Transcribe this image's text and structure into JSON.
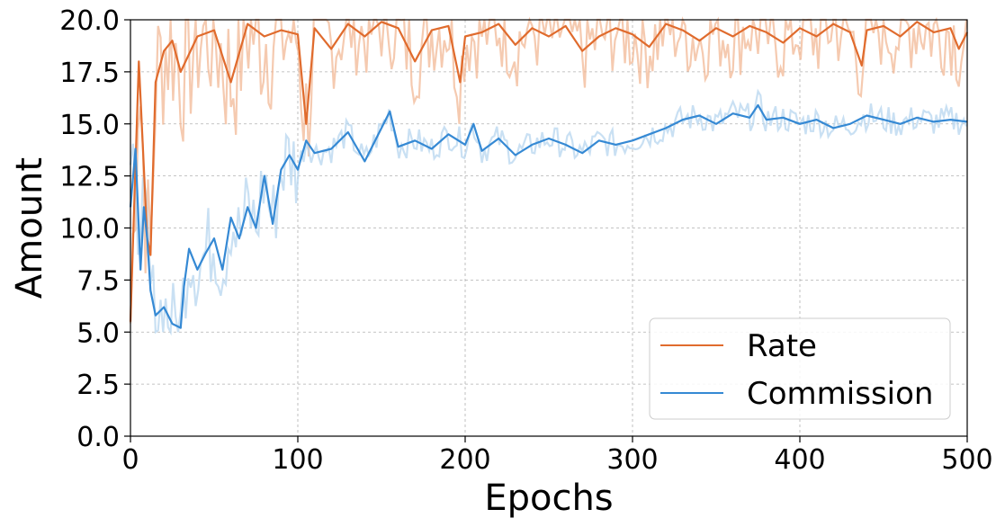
{
  "chart_data": {
    "type": "line",
    "title": "",
    "xlabel": "Epochs",
    "ylabel": "Amount",
    "xlim": [
      0,
      500
    ],
    "ylim": [
      0,
      20
    ],
    "xticks": [
      0,
      100,
      200,
      300,
      400,
      500
    ],
    "yticks": [
      0.0,
      2.5,
      5.0,
      7.5,
      10.0,
      12.5,
      15.0,
      17.5,
      20.0
    ],
    "xtick_labels": [
      "0",
      "100",
      "200",
      "300",
      "400",
      "500"
    ],
    "ytick_labels": [
      "0.0",
      "2.5",
      "5.0",
      "7.5",
      "10.0",
      "12.5",
      "15.0",
      "17.5",
      "20.0"
    ],
    "grid": true,
    "legend_position": "lower-right",
    "series": [
      {
        "name": "Rate",
        "color": "#e06b2d",
        "raw_color": "#f2b896",
        "x": [
          0,
          5,
          10,
          12,
          15,
          20,
          25,
          30,
          40,
          50,
          60,
          70,
          80,
          90,
          100,
          105,
          110,
          120,
          130,
          140,
          150,
          160,
          170,
          180,
          190,
          197,
          200,
          210,
          220,
          230,
          240,
          250,
          260,
          270,
          280,
          290,
          300,
          310,
          320,
          330,
          340,
          350,
          360,
          370,
          380,
          390,
          400,
          410,
          420,
          430,
          437,
          440,
          450,
          460,
          470,
          480,
          490,
          495,
          500
        ],
        "values": [
          5.5,
          18.0,
          9.5,
          8.7,
          17.0,
          18.5,
          19.0,
          17.5,
          19.2,
          19.5,
          17.0,
          19.8,
          19.2,
          19.5,
          19.3,
          15.0,
          19.6,
          18.6,
          19.8,
          19.2,
          19.9,
          19.6,
          18.0,
          19.5,
          19.7,
          17.0,
          19.2,
          19.4,
          19.8,
          18.8,
          19.6,
          19.2,
          19.7,
          18.5,
          19.2,
          19.6,
          19.3,
          18.7,
          19.8,
          19.5,
          19.0,
          19.6,
          19.2,
          19.7,
          19.4,
          18.9,
          19.6,
          19.2,
          19.8,
          19.4,
          17.8,
          19.5,
          19.7,
          19.2,
          19.9,
          19.4,
          19.6,
          18.6,
          19.4
        ]
      },
      {
        "name": "Commission",
        "color": "#3589d4",
        "raw_color": "#b7d6ef",
        "x": [
          0,
          3,
          6,
          8,
          10,
          12,
          15,
          20,
          25,
          30,
          32,
          35,
          40,
          45,
          50,
          55,
          60,
          65,
          70,
          75,
          80,
          85,
          90,
          95,
          100,
          105,
          110,
          120,
          130,
          140,
          150,
          155,
          160,
          170,
          180,
          190,
          200,
          205,
          210,
          220,
          230,
          240,
          250,
          260,
          270,
          280,
          290,
          300,
          310,
          320,
          330,
          340,
          350,
          360,
          370,
          375,
          380,
          390,
          400,
          410,
          420,
          430,
          440,
          450,
          460,
          470,
          480,
          490,
          500
        ],
        "values": [
          11.0,
          13.8,
          8.0,
          11.0,
          9.5,
          7.0,
          5.8,
          6.2,
          5.4,
          5.2,
          7.2,
          9.0,
          8.0,
          8.8,
          9.5,
          8.0,
          10.5,
          9.5,
          11.0,
          10.0,
          12.5,
          10.2,
          12.8,
          13.5,
          12.8,
          14.2,
          13.6,
          13.8,
          14.6,
          13.2,
          14.8,
          15.6,
          13.9,
          14.2,
          13.8,
          14.5,
          14.0,
          15.0,
          13.7,
          14.3,
          13.5,
          14.0,
          14.3,
          14.0,
          13.6,
          14.2,
          14.0,
          14.2,
          14.5,
          14.8,
          15.2,
          15.4,
          15.0,
          15.5,
          15.3,
          15.9,
          15.2,
          15.3,
          15.0,
          15.2,
          14.8,
          15.0,
          15.4,
          15.2,
          15.0,
          15.3,
          15.1,
          15.2,
          15.1
        ]
      }
    ]
  }
}
